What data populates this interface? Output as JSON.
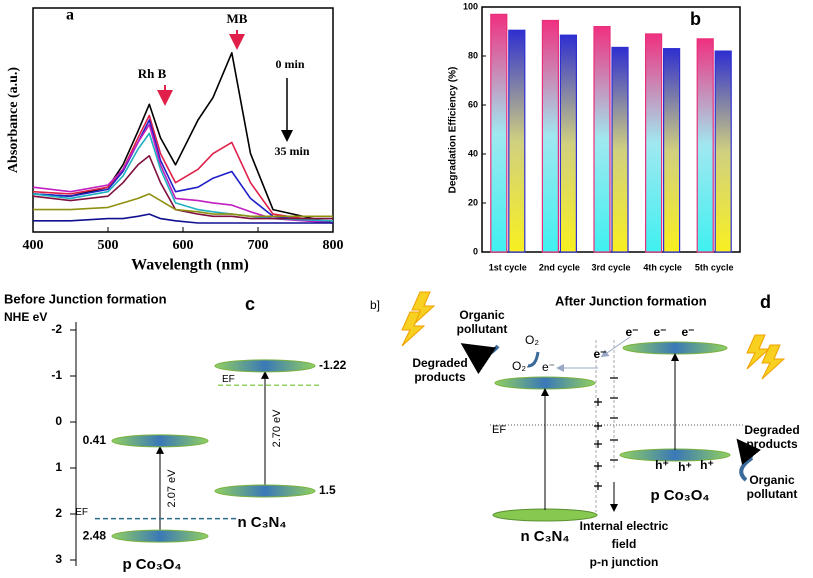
{
  "chart_data": [
    {
      "type": "line",
      "label": "a",
      "x": [
        400,
        450,
        500,
        520,
        540,
        555,
        570,
        590,
        620,
        640,
        665,
        690,
        720,
        800
      ],
      "series": [
        {
          "color": "#000000",
          "values": [
            0.17,
            0.16,
            0.2,
            0.3,
            0.45,
            0.57,
            0.42,
            0.3,
            0.5,
            0.6,
            0.8,
            0.35,
            0.1,
            0.04
          ]
        },
        {
          "color": "#e0204a",
          "values": [
            0.18,
            0.17,
            0.2,
            0.28,
            0.42,
            0.52,
            0.35,
            0.22,
            0.28,
            0.35,
            0.4,
            0.22,
            0.08,
            0.04
          ]
        },
        {
          "color": "#2020c8",
          "values": [
            0.17,
            0.16,
            0.19,
            0.27,
            0.4,
            0.5,
            0.32,
            0.18,
            0.2,
            0.24,
            0.27,
            0.15,
            0.07,
            0.04
          ]
        },
        {
          "color": "#c020c0",
          "values": [
            0.2,
            0.18,
            0.21,
            0.28,
            0.4,
            0.48,
            0.3,
            0.15,
            0.14,
            0.13,
            0.12,
            0.09,
            0.06,
            0.04
          ]
        },
        {
          "color": "#20b0c0",
          "values": [
            0.17,
            0.15,
            0.18,
            0.25,
            0.37,
            0.44,
            0.28,
            0.13,
            0.1,
            0.09,
            0.08,
            0.07,
            0.06,
            0.05
          ]
        },
        {
          "color": "#801040",
          "values": [
            0.16,
            0.14,
            0.16,
            0.22,
            0.3,
            0.34,
            0.22,
            0.1,
            0.08,
            0.07,
            0.07,
            0.06,
            0.06,
            0.06
          ]
        },
        {
          "color": "#909010",
          "values": [
            0.1,
            0.1,
            0.11,
            0.13,
            0.15,
            0.17,
            0.14,
            0.1,
            0.09,
            0.08,
            0.08,
            0.07,
            0.07,
            0.07
          ]
        },
        {
          "color": "#101090",
          "values": [
            0.05,
            0.05,
            0.06,
            0.06,
            0.07,
            0.08,
            0.06,
            0.05,
            0.04,
            0.04,
            0.04,
            0.04,
            0.04,
            0.04
          ]
        }
      ],
      "xlim": [
        400,
        800
      ],
      "xticks": [
        400,
        500,
        600,
        700,
        800
      ],
      "ylim": [
        0,
        1
      ],
      "xlabel": "Wavelength (nm)",
      "ylabel": "Absorbance (a.u.)",
      "annotations": {
        "rhb": "Rh B",
        "mb": "MB",
        "start": "0 min",
        "end": "35 min"
      }
    },
    {
      "type": "bar",
      "label": "b",
      "categories": [
        "1st cycle",
        "2nd cycle",
        "3rd cycle",
        "4th cycle",
        "5th cycle"
      ],
      "series": [
        {
          "color": "#e8307a",
          "values": [
            97,
            94.5,
            92,
            89,
            87
          ]
        },
        {
          "color": "#2f2fd0",
          "values": [
            90.5,
            88.5,
            83.5,
            83,
            82
          ]
        }
      ],
      "ylim": [
        0,
        100
      ],
      "yticks": [
        0,
        20,
        40,
        60,
        80,
        100
      ],
      "ylabel": "Degradation Efficiency (%)"
    }
  ],
  "diagram_c": {
    "title": "Before Junction formation",
    "axis_label": "NHE eV",
    "label": "c",
    "ticks": [
      -2,
      -1,
      0,
      1,
      2,
      3
    ],
    "materials": [
      {
        "name": "p Co₃O₄",
        "cb": 0.41,
        "vb": 2.48,
        "ef": 2.1,
        "ef_label": "EF",
        "gap": "2.07 eV"
      },
      {
        "name": "n C₃N₄",
        "cb": -1.22,
        "vb": 1.5,
        "ef": -0.8,
        "ef_label": "EF",
        "gap": "2.70 eV"
      }
    ]
  },
  "diagram_d": {
    "label": "d",
    "stray": "b]",
    "title": "After Junction formation",
    "pollutant_left": [
      "Organic",
      "pollutant"
    ],
    "o2": "O₂",
    "superoxide": "O₂·⁻",
    "electron_left": "e⁻",
    "products_left": [
      "Degraded",
      "products"
    ],
    "ef": "EF",
    "field": [
      "Internal electric",
      "field",
      "p-n junction"
    ],
    "n_material": "n C₃N₄",
    "p_material": "p Co₃O₄",
    "products_right": [
      "Degraded",
      "products"
    ],
    "pollutant_right": [
      "Organic",
      "pollutant"
    ],
    "electrons": [
      "e⁻",
      "e⁻",
      "e⁻",
      "e⁻"
    ],
    "holes": [
      "h⁺",
      "h⁺",
      "h⁺"
    ]
  }
}
